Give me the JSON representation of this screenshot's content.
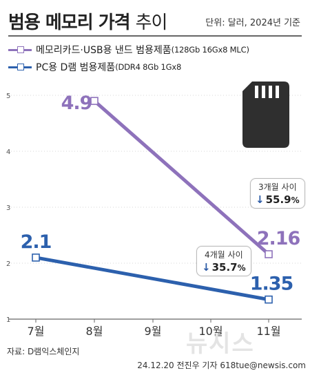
{
  "title": {
    "bold": "범용 메모리 가격",
    "light": "추이"
  },
  "unit": "단위: 달러, 2024년 기준",
  "colors": {
    "purple": "#8e72bb",
    "blue": "#2c60ad",
    "grid": "#d6d6d6",
    "axis": "#666666",
    "arrow": "#2b5aa5"
  },
  "chart_data": {
    "type": "line",
    "categories": [
      "7월",
      "8월",
      "9월",
      "10월",
      "11월"
    ],
    "ylim": [
      1,
      5
    ],
    "yticks": [
      "1",
      "2",
      "3",
      "4",
      "5"
    ],
    "series": [
      {
        "name": "메모리카드·USB용 낸드 범용제품",
        "detail": "(128Gb 16Gx8 MLC)",
        "color": "#8e72bb",
        "values": [
          null,
          4.9,
          null,
          null,
          2.16
        ],
        "labels": [
          "",
          "4.9",
          "",
          "",
          "2.16"
        ]
      },
      {
        "name": "PC용 D램 범용제품",
        "detail": "(DDR4 8Gb 1Gx8",
        "color": "#2c60ad",
        "values": [
          2.1,
          null,
          null,
          null,
          1.35
        ],
        "labels": [
          "2.1",
          "",
          "",
          "",
          "1.35"
        ]
      }
    ],
    "annotations": [
      {
        "title": "3개월 사이",
        "arrow": "↓",
        "value": "55.9",
        "unit": "%"
      },
      {
        "title": "4개월 사이",
        "arrow": "↓",
        "value": "35.7",
        "unit": "%"
      }
    ]
  },
  "icon": "sd-card-icon",
  "source": "자료: D램익스체인지",
  "credit": "24.12.20 전진우 기자 618tue@newsis.com",
  "watermark": "뉴시스"
}
